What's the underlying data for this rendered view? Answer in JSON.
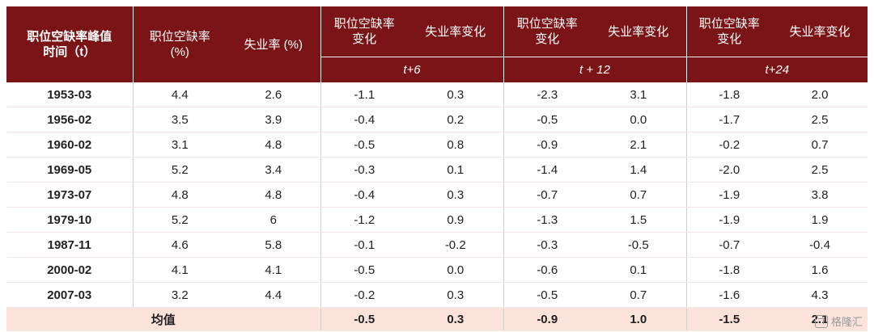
{
  "header": {
    "col_peak_time": "职位空缺率峰值\n时间（t）",
    "col_vacancy": "职位空缺率\n(%)",
    "col_unemp": "失业率 (%)",
    "col_vac_change": "职位空缺率\n变化",
    "col_unemp_change": "失业率变化",
    "periods": [
      "t+6",
      "t + 12",
      "t+24"
    ]
  },
  "rows": [
    {
      "date": "1953-03",
      "vac": "4.4",
      "unemp": "2.6",
      "v6": "-1.1",
      "u6": "0.3",
      "v12": "-2.3",
      "u12": "3.1",
      "v24": "-1.8",
      "u24": "2.0"
    },
    {
      "date": "1956-02",
      "vac": "3.5",
      "unemp": "3.9",
      "v6": "-0.4",
      "u6": "0.2",
      "v12": "-0.5",
      "u12": "0.0",
      "v24": "-1.7",
      "u24": "2.5"
    },
    {
      "date": "1960-02",
      "vac": "3.1",
      "unemp": "4.8",
      "v6": "-0.5",
      "u6": "0.8",
      "v12": "-0.9",
      "u12": "2.1",
      "v24": "-0.2",
      "u24": "0.7"
    },
    {
      "date": "1969-05",
      "vac": "5.2",
      "unemp": "3.4",
      "v6": "-0.3",
      "u6": "0.1",
      "v12": "-1.4",
      "u12": "1.4",
      "v24": "-2.0",
      "u24": "2.5"
    },
    {
      "date": "1973-07",
      "vac": "4.8",
      "unemp": "4.8",
      "v6": "-0.4",
      "u6": "0.3",
      "v12": "-0.7",
      "u12": "0.7",
      "v24": "-1.9",
      "u24": "3.8"
    },
    {
      "date": "1979-10",
      "vac": "5.2",
      "unemp": "6",
      "v6": "-1.2",
      "u6": "0.9",
      "v12": "-1.3",
      "u12": "1.5",
      "v24": "-1.9",
      "u24": "1.9"
    },
    {
      "date": "1987-11",
      "vac": "4.6",
      "unemp": "5.8",
      "v6": "-0.1",
      "u6": "-0.2",
      "v12": "-0.3",
      "u12": "-0.5",
      "v24": "-0.7",
      "u24": "-0.4"
    },
    {
      "date": "2000-02",
      "vac": "4.1",
      "unemp": "4.1",
      "v6": "-0.5",
      "u6": "0.0",
      "v12": "-0.6",
      "u12": "0.1",
      "v24": "-1.8",
      "u24": "1.6"
    },
    {
      "date": "2007-03",
      "vac": "3.2",
      "unemp": "4.4",
      "v6": "-0.2",
      "u6": "0.3",
      "v12": "-0.5",
      "u12": "0.7",
      "v24": "-1.6",
      "u24": "4.3"
    }
  ],
  "average": {
    "label": "均值",
    "v6": "-0.5",
    "u6": "0.3",
    "v12": "-0.9",
    "u12": "1.0",
    "v24": "-1.5",
    "u24": "2.1"
  },
  "watermark": "格隆汇"
}
